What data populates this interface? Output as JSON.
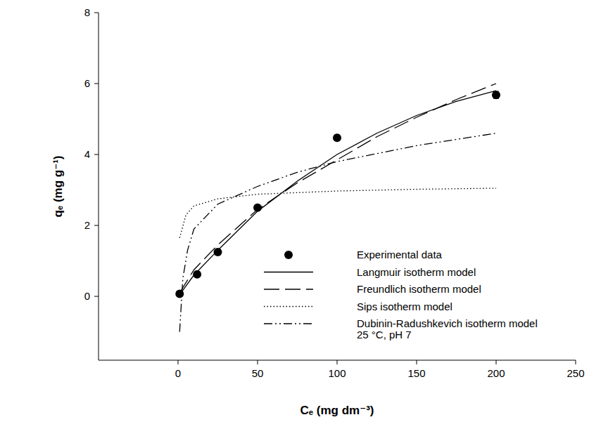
{
  "chart_data": {
    "type": "scatter",
    "x_label": "Cₑ (mg dm⁻³)",
    "y_label": "qₑ (mg g⁻¹)",
    "xlim": [
      -50,
      250
    ],
    "xticks": [
      0,
      50,
      100,
      150,
      200,
      250
    ],
    "ylim": [
      -1.8,
      8
    ],
    "yticks": [
      0,
      2,
      4,
      6,
      8
    ],
    "legend": "lower right",
    "annotations": [
      "25 °C, pH 7"
    ],
    "series": [
      {
        "name": "Experimental data",
        "type": "scatter",
        "marker": "circle",
        "color": "#000000",
        "x": [
          1,
          12,
          25,
          50,
          100,
          200
        ],
        "values": [
          0.07,
          0.62,
          1.25,
          2.5,
          4.47,
          5.68
        ],
        "errors": [
          0.05,
          0.05,
          0.05,
          0.06,
          0.08,
          0.1
        ]
      },
      {
        "name": "Langmuir isotherm model",
        "type": "line",
        "line_style": "solid",
        "color": "#000000",
        "x": [
          1,
          10,
          25,
          50,
          75,
          100,
          125,
          150,
          175,
          200
        ],
        "values": [
          0.05,
          0.6,
          1.3,
          2.4,
          3.25,
          4.0,
          4.6,
          5.1,
          5.5,
          5.8
        ]
      },
      {
        "name": "Freundlich isotherm model",
        "type": "line",
        "line_style": "dashed",
        "color": "#000000",
        "x": [
          1,
          10,
          25,
          50,
          75,
          100,
          125,
          150,
          175,
          200
        ],
        "values": [
          0.1,
          0.75,
          1.45,
          2.45,
          3.2,
          3.85,
          4.5,
          5.05,
          5.55,
          6.0
        ]
      },
      {
        "name": "Sips isotherm model",
        "type": "line",
        "line_style": "dotted",
        "color": "#000000",
        "x": [
          1,
          5,
          10,
          25,
          50,
          100,
          150,
          200
        ],
        "values": [
          1.65,
          2.3,
          2.55,
          2.75,
          2.88,
          2.97,
          3.02,
          3.05
        ]
      },
      {
        "name": "Dubinin-Radushkevich isotherm model",
        "type": "line",
        "line_style": "dashdotdot",
        "color": "#000000",
        "x": [
          1,
          3,
          6,
          10,
          25,
          50,
          75,
          100,
          150,
          200
        ],
        "values": [
          -1.0,
          0.5,
          1.3,
          1.9,
          2.6,
          3.1,
          3.5,
          3.8,
          4.25,
          4.6
        ]
      }
    ]
  }
}
